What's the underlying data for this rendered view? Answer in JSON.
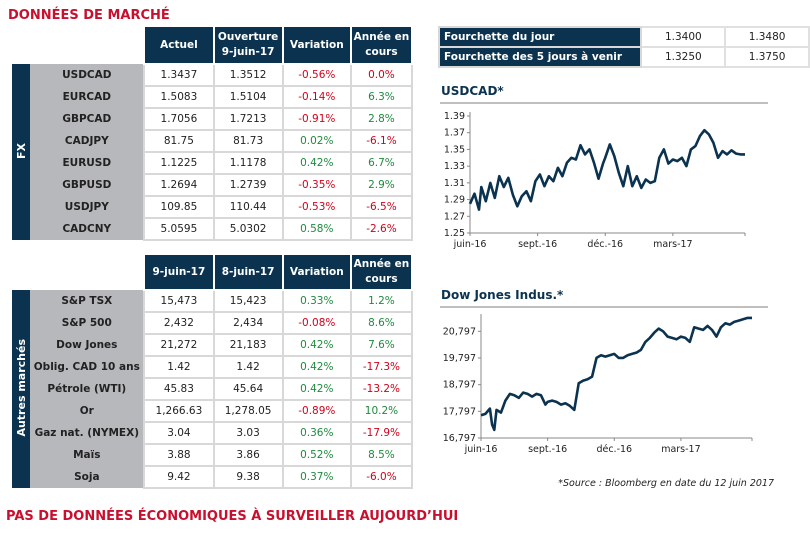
{
  "page_title": "DONNÉES DE MARCHÉ",
  "footer_title": "PAS DE DONNÉES ÉCONOMIQUES À SURVEILLER AUJOURD’HUI",
  "source_note": "*Source : Bloomberg en date du  12 juin 2017",
  "colors": {
    "navy": "#0b3350",
    "red": "#c8102e",
    "neg": "#d0021b",
    "pos": "#1e8a3e",
    "label_bg": "#b7b8bb"
  },
  "fx_table": {
    "section_label": "FX",
    "headers": [
      "Actuel",
      "Ouverture 9-juin-17",
      "Variation",
      "Année en cours"
    ],
    "header_lines": [
      [
        "Actuel"
      ],
      [
        "Ouverture",
        "9-juin-17"
      ],
      [
        "Variation"
      ],
      [
        "Année en",
        "cours"
      ]
    ],
    "rows": [
      {
        "name": "USDCAD",
        "actuel": "1.3437",
        "ouverture": "1.3512",
        "variation": "-0.56%",
        "annee": "0.0%",
        "var_sign": "neg",
        "ytd_sign": "neg"
      },
      {
        "name": "EURCAD",
        "actuel": "1.5083",
        "ouverture": "1.5104",
        "variation": "-0.14%",
        "annee": "6.3%",
        "var_sign": "neg",
        "ytd_sign": "pos"
      },
      {
        "name": "GBPCAD",
        "actuel": "1.7056",
        "ouverture": "1.7213",
        "variation": "-0.91%",
        "annee": "2.8%",
        "var_sign": "neg",
        "ytd_sign": "pos"
      },
      {
        "name": "CADJPY",
        "actuel": "81.75",
        "ouverture": "81.73",
        "variation": "0.02%",
        "annee": "-6.1%",
        "var_sign": "pos",
        "ytd_sign": "neg"
      },
      {
        "name": "EURUSD",
        "actuel": "1.1225",
        "ouverture": "1.1178",
        "variation": "0.42%",
        "annee": "6.7%",
        "var_sign": "pos",
        "ytd_sign": "pos"
      },
      {
        "name": "GBPUSD",
        "actuel": "1.2694",
        "ouverture": "1.2739",
        "variation": "-0.35%",
        "annee": "2.9%",
        "var_sign": "neg",
        "ytd_sign": "pos"
      },
      {
        "name": "USDJPY",
        "actuel": "109.85",
        "ouverture": "110.44",
        "variation": "-0.53%",
        "annee": "-6.5%",
        "var_sign": "neg",
        "ytd_sign": "neg"
      },
      {
        "name": "CADCNY",
        "actuel": "5.0595",
        "ouverture": "5.0302",
        "variation": "0.58%",
        "annee": "-2.6%",
        "var_sign": "pos",
        "ytd_sign": "neg"
      }
    ]
  },
  "markets_table": {
    "section_label": "Autres marchés",
    "header_lines": [
      [
        "9-juin-17"
      ],
      [
        "8-juin-17"
      ],
      [
        "Variation"
      ],
      [
        "Année en",
        "cours"
      ]
    ],
    "rows": [
      {
        "name": "S&P TSX",
        "d1": "15,473",
        "d2": "15,423",
        "variation": "0.33%",
        "annee": "1.2%",
        "var_sign": "pos",
        "ytd_sign": "pos"
      },
      {
        "name": "S&P 500",
        "d1": "2,432",
        "d2": "2,434",
        "variation": "-0.08%",
        "annee": "8.6%",
        "var_sign": "neg",
        "ytd_sign": "pos"
      },
      {
        "name": "Dow Jones",
        "d1": "21,272",
        "d2": "21,183",
        "variation": "0.42%",
        "annee": "7.6%",
        "var_sign": "pos",
        "ytd_sign": "pos"
      },
      {
        "name": "Oblig. CAD 10 ans",
        "d1": "1.42",
        "d2": "1.42",
        "variation": "0.42%",
        "annee": "-17.3%",
        "var_sign": "pos",
        "ytd_sign": "neg"
      },
      {
        "name": "Pétrole (WTI)",
        "d1": "45.83",
        "d2": "45.64",
        "variation": "0.42%",
        "annee": "-13.2%",
        "var_sign": "pos",
        "ytd_sign": "neg"
      },
      {
        "name": "Or",
        "d1": "1,266.63",
        "d2": "1,278.05",
        "variation": "-0.89%",
        "annee": "10.2%",
        "var_sign": "neg",
        "ytd_sign": "pos"
      },
      {
        "name": "Gaz nat. (NYMEX)",
        "d1": "3.04",
        "d2": "3.03",
        "variation": "0.36%",
        "annee": "-17.9%",
        "var_sign": "pos",
        "ytd_sign": "neg"
      },
      {
        "name": "Maïs",
        "d1": "3.88",
        "d2": "3.86",
        "variation": "0.52%",
        "annee": "8.5%",
        "var_sign": "pos",
        "ytd_sign": "pos"
      },
      {
        "name": "Soja",
        "d1": "9.42",
        "d2": "9.38",
        "variation": "0.37%",
        "annee": "-6.0%",
        "var_sign": "pos",
        "ytd_sign": "neg"
      }
    ]
  },
  "ranges": [
    {
      "label": "Fourchette du jour",
      "low": "1.3400",
      "high": "1.3480"
    },
    {
      "label": "Fourchette des 5 jours à venir",
      "low": "1.3250",
      "high": "1.3750"
    }
  ],
  "chart_data": [
    {
      "type": "line",
      "title": "USDCAD*",
      "xlabel": "",
      "ylabel": "",
      "ylim": [
        1.25,
        1.39
      ],
      "yticks": [
        "1.25",
        "1.27",
        "1.29",
        "1.31",
        "1.33",
        "1.35",
        "1.37",
        "1.39"
      ],
      "xticks": [
        "juin-16",
        "sept.-16",
        "déc.-16",
        "mars-17"
      ],
      "xtick_pos": [
        0,
        3,
        6,
        9
      ],
      "xlim": [
        0,
        12.2
      ],
      "grid": false,
      "series": [
        {
          "name": "USDCAD",
          "x": [
            0,
            0.2,
            0.4,
            0.5,
            0.7,
            0.9,
            1.1,
            1.3,
            1.5,
            1.7,
            1.9,
            2.1,
            2.3,
            2.5,
            2.7,
            2.9,
            3.1,
            3.3,
            3.5,
            3.7,
            3.9,
            4.1,
            4.3,
            4.5,
            4.7,
            4.9,
            5.1,
            5.3,
            5.5,
            5.7,
            5.9,
            6.0,
            6.2,
            6.4,
            6.6,
            6.8,
            7.0,
            7.2,
            7.4,
            7.6,
            7.8,
            8.0,
            8.2,
            8.4,
            8.6,
            8.8,
            9.0,
            9.2,
            9.4,
            9.6,
            9.8,
            10.0,
            10.2,
            10.4,
            10.6,
            10.8,
            11.0,
            11.2,
            11.4,
            11.6,
            11.8,
            12.0,
            12.2
          ],
          "values": [
            1.285,
            1.297,
            1.278,
            1.305,
            1.288,
            1.31,
            1.292,
            1.318,
            1.305,
            1.316,
            1.296,
            1.282,
            1.294,
            1.3,
            1.288,
            1.312,
            1.32,
            1.306,
            1.318,
            1.312,
            1.328,
            1.318,
            1.334,
            1.34,
            1.338,
            1.355,
            1.344,
            1.35,
            1.334,
            1.315,
            1.333,
            1.34,
            1.356,
            1.342,
            1.322,
            1.306,
            1.33,
            1.306,
            1.318,
            1.304,
            1.314,
            1.31,
            1.312,
            1.34,
            1.35,
            1.333,
            1.338,
            1.336,
            1.34,
            1.33,
            1.35,
            1.354,
            1.366,
            1.373,
            1.368,
            1.358,
            1.34,
            1.348,
            1.344,
            1.349,
            1.345,
            1.344,
            1.344
          ]
        }
      ]
    },
    {
      "type": "line",
      "title": "Dow Jones Indus.*",
      "xlabel": "",
      "ylabel": "",
      "ylim": [
        16797,
        21297
      ],
      "yticks": [
        "16,797",
        "17,797",
        "18,797",
        "19,797",
        "20,797"
      ],
      "ytick_vals": [
        16797,
        17797,
        18797,
        19797,
        20797
      ],
      "xticks": [
        "juin-16",
        "sept.-16",
        "déc.-16",
        "mars-17"
      ],
      "xtick_pos": [
        0,
        3,
        6,
        9
      ],
      "xlim": [
        0,
        12.2
      ],
      "grid": false,
      "series": [
        {
          "name": "Dow Jones",
          "x": [
            0,
            0.2,
            0.4,
            0.5,
            0.6,
            0.7,
            0.9,
            1.1,
            1.3,
            1.5,
            1.7,
            1.9,
            2.1,
            2.3,
            2.5,
            2.7,
            2.9,
            3.0,
            3.2,
            3.4,
            3.6,
            3.8,
            4.0,
            4.2,
            4.4,
            4.6,
            4.8,
            5.0,
            5.2,
            5.4,
            5.6,
            5.8,
            6.0,
            6.2,
            6.4,
            6.6,
            6.8,
            7.0,
            7.2,
            7.4,
            7.6,
            7.8,
            8.0,
            8.2,
            8.4,
            8.6,
            8.8,
            9.0,
            9.2,
            9.4,
            9.6,
            9.8,
            10.0,
            10.2,
            10.4,
            10.6,
            10.8,
            11.0,
            11.2,
            11.4,
            11.6,
            11.8,
            12.0,
            12.2
          ],
          "values": [
            17650,
            17700,
            17900,
            17300,
            17100,
            17850,
            17750,
            18200,
            18450,
            18400,
            18300,
            18500,
            18450,
            18350,
            18450,
            18400,
            18050,
            18150,
            18200,
            18150,
            18050,
            18100,
            18000,
            17850,
            18850,
            18950,
            19000,
            19100,
            19800,
            19900,
            19850,
            19900,
            19950,
            19800,
            19800,
            19900,
            19950,
            20000,
            20100,
            20400,
            20550,
            20750,
            20900,
            20800,
            20600,
            20550,
            20500,
            20600,
            20550,
            20400,
            20950,
            20900,
            20850,
            21000,
            20850,
            20600,
            20950,
            21100,
            21050,
            21150,
            21200,
            21250,
            21300,
            21300
          ]
        }
      ]
    }
  ]
}
